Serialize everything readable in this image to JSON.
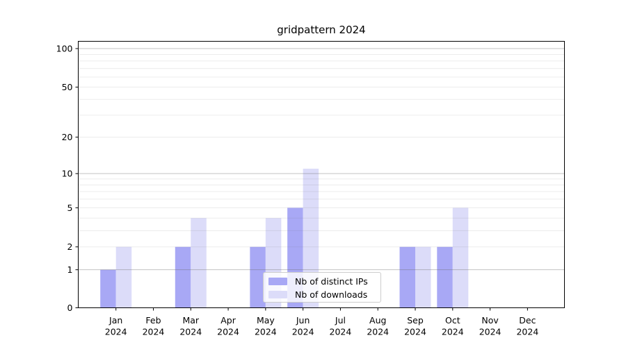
{
  "title": "gridpattern 2024",
  "legend": {
    "items": [
      {
        "label": "Nb of distinct IPs",
        "series": "ips"
      },
      {
        "label": "Nb of downloads",
        "series": "downloads"
      }
    ]
  },
  "y_axis": {
    "tick_labels": [
      "0",
      "1",
      "2",
      "5",
      "10",
      "20",
      "50",
      "100"
    ],
    "tick_values": [
      0,
      1,
      2,
      5,
      10,
      20,
      50,
      100
    ],
    "major_grid_values": [
      1,
      10,
      100
    ],
    "minor_grid_values": [
      2,
      3,
      4,
      5,
      6,
      7,
      8,
      9,
      20,
      30,
      40,
      50,
      60,
      70,
      80,
      90
    ]
  },
  "x_axis": {
    "months": [
      "Jan",
      "Feb",
      "Mar",
      "Apr",
      "May",
      "Jun",
      "Jul",
      "Aug",
      "Sep",
      "Oct",
      "Nov",
      "Dec"
    ],
    "year": "2024"
  },
  "colors": {
    "ips_bar": "#a8a8f5",
    "downloads_bar": "#dcdcf9",
    "grid_major": "rgba(105,105,105,0.40)",
    "grid_minor": "rgba(105,105,105,0.13)",
    "axis": "#000000",
    "text": "#000000",
    "legend_border": "#cccccc"
  },
  "chart_data": {
    "type": "bar",
    "title": "gridpattern 2024",
    "categories": [
      "Jan 2024",
      "Feb 2024",
      "Mar 2024",
      "Apr 2024",
      "May 2024",
      "Jun 2024",
      "Jul 2024",
      "Aug 2024",
      "Sep 2024",
      "Oct 2024",
      "Nov 2024",
      "Dec 2024"
    ],
    "series": [
      {
        "name": "Nb of distinct IPs",
        "values": [
          1,
          0,
          2,
          0,
          2,
          5,
          0,
          0,
          2,
          2,
          0,
          0
        ],
        "color": "#a8a8f5"
      },
      {
        "name": "Nb of downloads",
        "values": [
          2,
          0,
          4,
          0,
          4,
          11,
          0,
          0,
          2,
          5,
          0,
          0
        ],
        "color": "#dcdcf9"
      }
    ],
    "xlabel": "",
    "ylabel": "",
    "yscale": "log1p",
    "yticks": [
      0,
      1,
      2,
      5,
      10,
      20,
      50,
      100
    ],
    "ylim": [
      0,
      110
    ],
    "grid": "horizontal major and minor gridlines, drawn above bars",
    "legend_position": "inside axes, lower center"
  }
}
